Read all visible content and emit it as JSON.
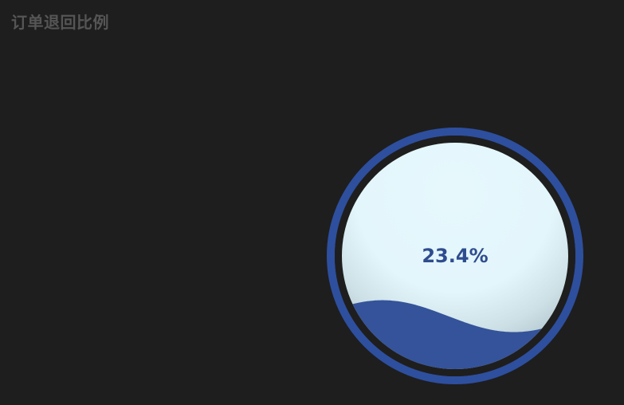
{
  "title": "订单退回比例",
  "chart_data": {
    "type": "liquidfill",
    "value": 0.234,
    "label": "23.4%",
    "colors": {
      "wave": "#34539a",
      "outline": "#2e4f9e",
      "background": "#e6f8fc",
      "label": "#2f4c8f",
      "title": "#555555"
    }
  }
}
